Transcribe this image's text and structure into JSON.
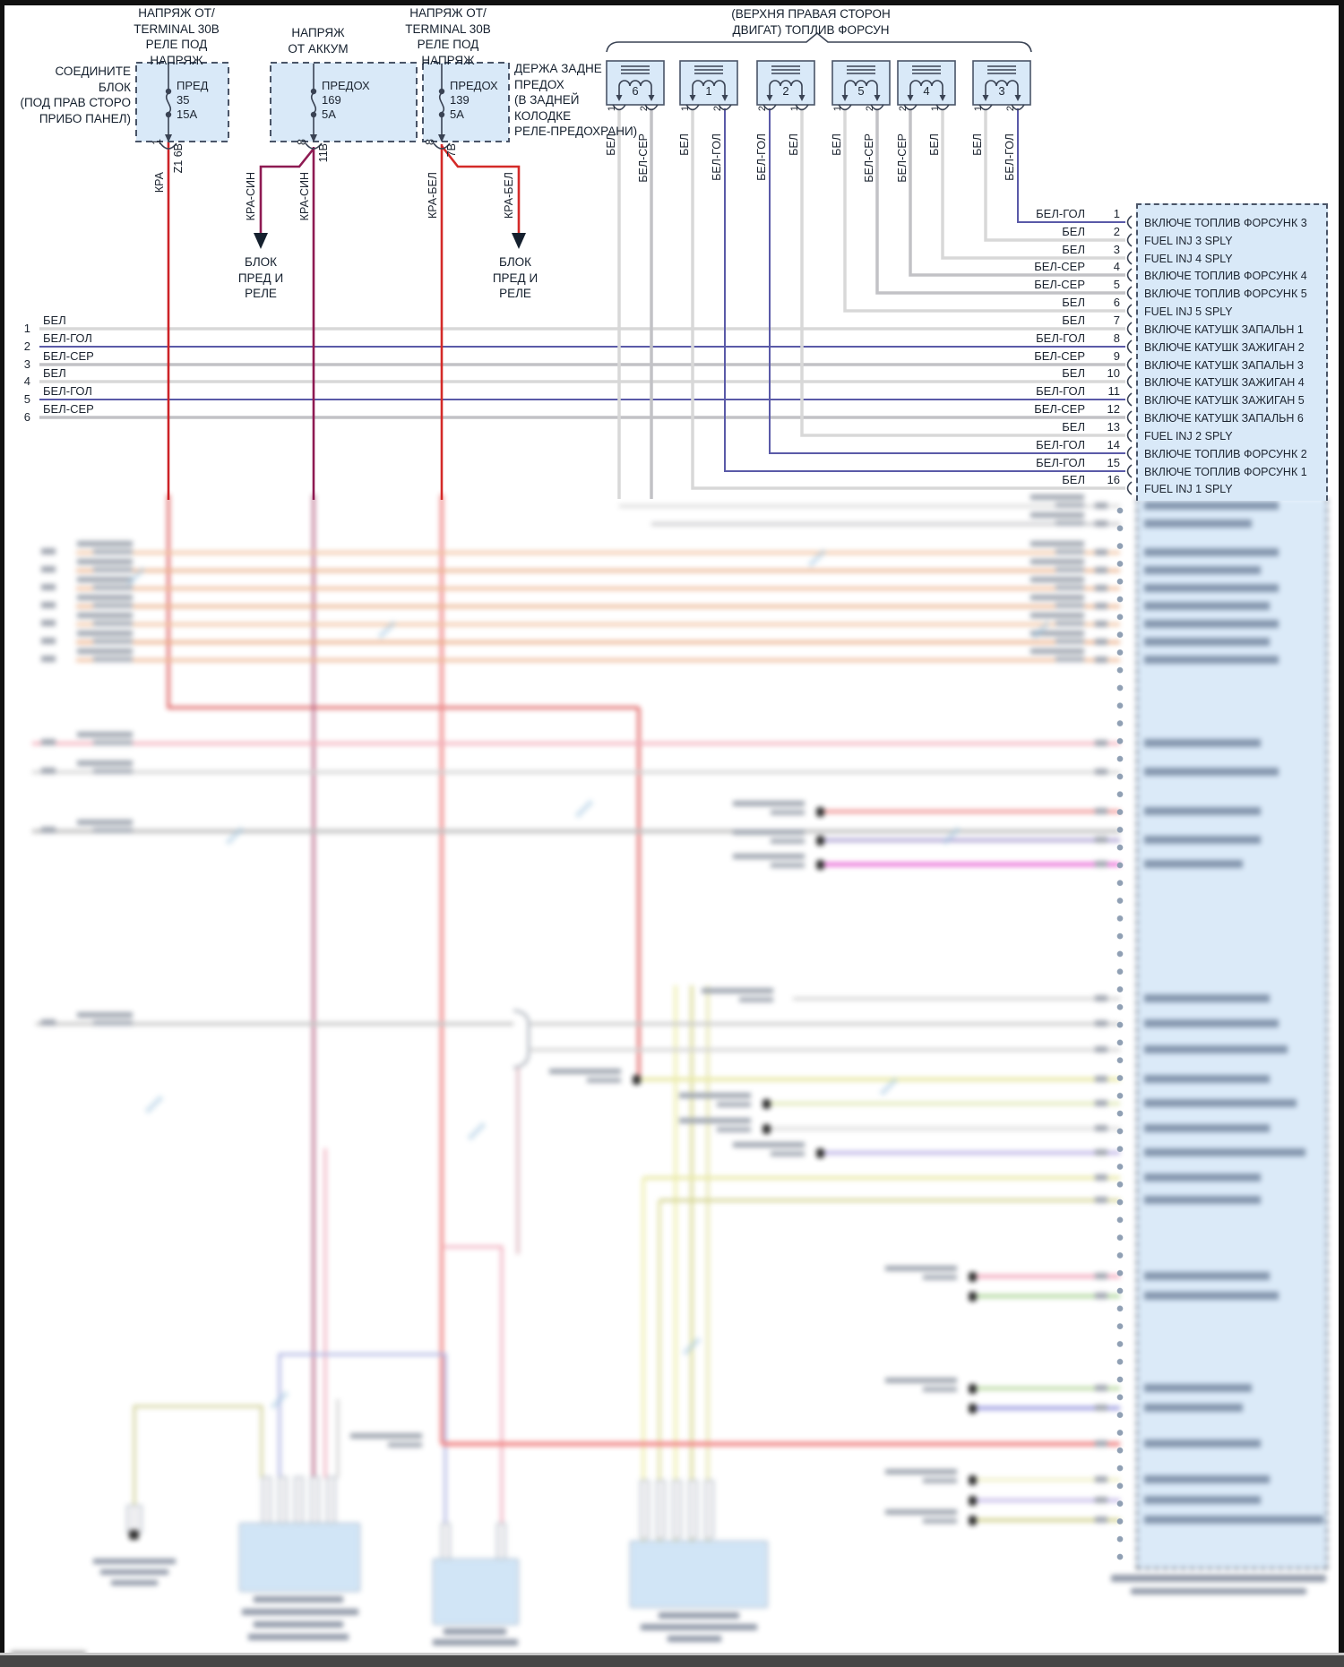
{
  "diagram": {
    "connect_note_lines": [
      "СОЕДИНИТЕ",
      "БЛОК",
      "(ПОД ПРАВ СТОРО",
      "ПРИБО ПАНЕЛ)"
    ],
    "voltage_header1_lines": [
      "НАПРЯЖ ОТ/",
      "TERMINAL 30В",
      "РЕЛЕ ПОД",
      "НАПРЯЖ"
    ],
    "battery_header_lines": [
      "НАПРЯЖ",
      "ОТ АККУМ"
    ],
    "voltage_header2_lines": [
      "НАПРЯЖ ОТ/",
      "TERMINAL 30В",
      "РЕЛЕ ПОД",
      "НАПРЯЖ"
    ],
    "holder_note_lines": [
      "ДЕРЖА ЗАДНЕ",
      "ПРЕДОХ",
      "(В ЗАДНЕЙ",
      "КОЛОДКЕ",
      "РЕЛЕ-ПРЕДОХРАНИ)"
    ],
    "injector_group_label_lines": [
      "(ВЕРХНЯ ПРАВАЯ СТОРОН",
      "ДВИГАТ) ТОПЛИВ ФОРСУН"
    ],
    "relay_block_label_lines": [
      "БЛОК",
      "ПРЕД И",
      "РЕЛЕ"
    ]
  },
  "fuses": [
    {
      "name": "ПРЕД",
      "number": "35",
      "rating": "15А",
      "pin": "1",
      "circuit": "Z1 6В",
      "wire": "КРА",
      "branch_wire": ""
    },
    {
      "name": "ПРЕДОХ",
      "number": "169",
      "rating": "5А",
      "pin": "8",
      "circuit": "11В",
      "wire": "КРА-СИН",
      "branch_wire": "КРА-СИН"
    },
    {
      "name": "ПРЕДОХ",
      "number": "139",
      "rating": "5А",
      "pin": "8",
      "circuit": "7В",
      "wire": "КРА-БЕЛ",
      "branch_wire": "КРА-БЕЛ"
    }
  ],
  "injectors": [
    {
      "number": "6",
      "pin_left": "1",
      "pin_right": "2",
      "wire_left": "БЕЛ",
      "wire_right": "БЕЛ-СЕР"
    },
    {
      "number": "1",
      "pin_left": "1",
      "pin_right": "2",
      "wire_left": "БЕЛ",
      "wire_right": "БЕЛ-ГОЛ"
    },
    {
      "number": "2",
      "pin_left": "2",
      "pin_right": "1",
      "wire_left": "БЕЛ-ГОЛ",
      "wire_right": "БЕЛ"
    },
    {
      "number": "5",
      "pin_left": "1",
      "pin_right": "2",
      "wire_left": "БЕЛ",
      "wire_right": "БЕЛ-СЕР"
    },
    {
      "number": "4",
      "pin_left": "2",
      "pin_right": "1",
      "wire_left": "БЕЛ-СЕР",
      "wire_right": "БЕЛ"
    },
    {
      "number": "3",
      "pin_left": "1",
      "pin_right": "2",
      "wire_left": "БЕЛ",
      "wire_right": "БЕЛ-ГОЛ"
    }
  ],
  "left_bus": [
    {
      "n": "1",
      "wire": "БЕЛ"
    },
    {
      "n": "2",
      "wire": "БЕЛ-ГОЛ"
    },
    {
      "n": "3",
      "wire": "БЕЛ-СЕР"
    },
    {
      "n": "4",
      "wire": "БЕЛ"
    },
    {
      "n": "5",
      "wire": "БЕЛ-ГОЛ"
    },
    {
      "n": "6",
      "wire": "БЕЛ-СЕР"
    }
  ],
  "ecm_rows": [
    {
      "pin": "1",
      "wire": "БЕЛ-ГОЛ",
      "function": "ВКЛЮЧЕ ТОПЛИВ ФОРСУНК 3"
    },
    {
      "pin": "2",
      "wire": "БЕЛ",
      "function": "FUEL INJ 3 SPLY"
    },
    {
      "pin": "3",
      "wire": "БЕЛ",
      "function": "FUEL INJ 4 SPLY"
    },
    {
      "pin": "4",
      "wire": "БЕЛ-СЕР",
      "function": "ВКЛЮЧЕ ТОПЛИВ ФОРСУНК 4"
    },
    {
      "pin": "5",
      "wire": "БЕЛ-СЕР",
      "function": "ВКЛЮЧЕ ТОПЛИВ ФОРСУНК 5"
    },
    {
      "pin": "6",
      "wire": "БЕЛ",
      "function": "FUEL INJ 5 SPLY"
    },
    {
      "pin": "7",
      "wire": "БЕЛ",
      "function": "ВКЛЮЧЕ КАТУШК ЗАПАЛЬН 1"
    },
    {
      "pin": "8",
      "wire": "БЕЛ-ГОЛ",
      "function": "ВКЛЮЧЕ КАТУШК ЗАЖИГАН 2"
    },
    {
      "pin": "9",
      "wire": "БЕЛ-СЕР",
      "function": "ВКЛЮЧЕ КАТУШК ЗАПАЛЬН 3"
    },
    {
      "pin": "10",
      "wire": "БЕЛ",
      "function": "ВКЛЮЧЕ КАТУШК ЗАЖИГАН 4"
    },
    {
      "pin": "11",
      "wire": "БЕЛ-ГОЛ",
      "function": "ВКЛЮЧЕ КАТУШК ЗАЖИГАН 5"
    },
    {
      "pin": "12",
      "wire": "БЕЛ-СЕР",
      "function": "ВКЛЮЧЕ КАТУШК ЗАПАЛЬН 6"
    },
    {
      "pin": "13",
      "wire": "БЕЛ",
      "function": "FUEL INJ 2 SPLY"
    },
    {
      "pin": "14",
      "wire": "БЕЛ-ГОЛ",
      "function": "ВКЛЮЧЕ ТОПЛИВ ФОРСУНК 2"
    },
    {
      "pin": "15",
      "wire": "БЕЛ-ГОЛ",
      "function": "ВКЛЮЧЕ ТОПЛИВ ФОРСУНК 1"
    },
    {
      "pin": "16",
      "wire": "БЕЛ",
      "function": "FUEL INJ 1 SPLY"
    }
  ],
  "colors": {
    "wire_red": "#cc2227",
    "wire_dark_red": "#8e1a52",
    "wire_red_white": "#d42a28",
    "white_wire": "#d8d8d8",
    "white_blue_wire": "#5a5aa8",
    "white_gray_wire": "#c2c2c6",
    "component_fill": "#d9e9f8",
    "diagram_line": "#3a4354"
  }
}
